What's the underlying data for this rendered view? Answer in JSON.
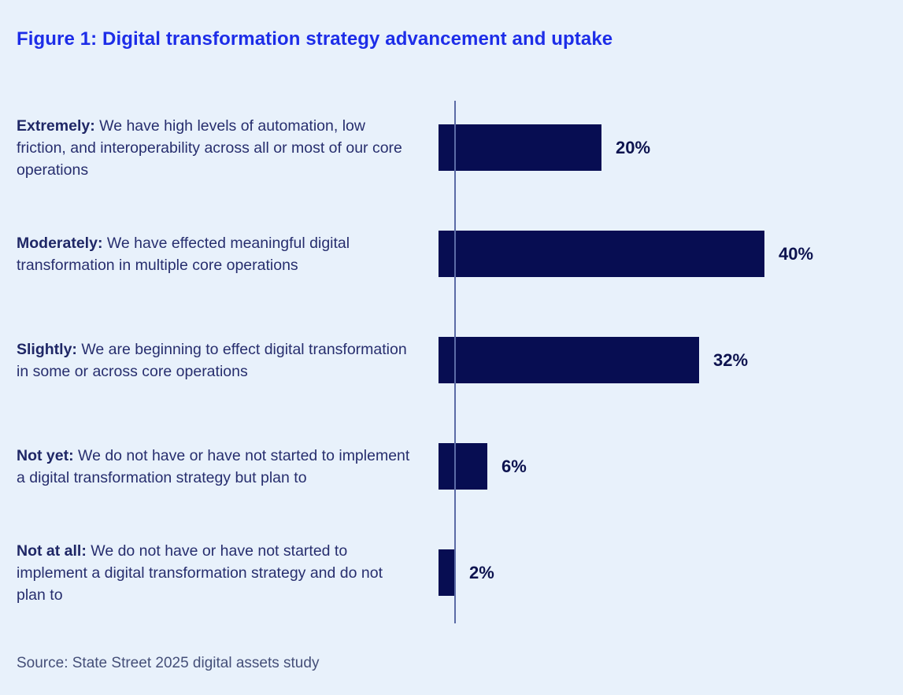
{
  "title": "Figure 1: Digital transformation strategy advancement and uptake",
  "source": "Source: State Street 2025 digital assets study",
  "rows": [
    {
      "lead": "Extremely:",
      "desc": " We have high levels of automation, low friction, and interoperability across all or most of our core operations",
      "value": 20,
      "value_label": "20%"
    },
    {
      "lead": "Moderately:",
      "desc": " We have effected meaningful digital transformation in multiple core operations",
      "value": 40,
      "value_label": "40%"
    },
    {
      "lead": "Slightly:",
      "desc": " We are beginning to effect digital transformation in some or across core operations",
      "value": 32,
      "value_label": "32%"
    },
    {
      "lead": "Not yet:",
      "desc": " We do not have or have not started to implement a digital transformation strategy but plan to",
      "value": 6,
      "value_label": "6%"
    },
    {
      "lead": "Not at all:",
      "desc": " We do not have or have not started to implement a digital transformation strategy and do not plan to",
      "value": 2,
      "value_label": "2%"
    }
  ],
  "chart_data": {
    "type": "bar",
    "orientation": "horizontal",
    "title": "Figure 1: Digital transformation strategy advancement and uptake",
    "categories": [
      "Extremely",
      "Moderately",
      "Slightly",
      "Not yet",
      "Not at all"
    ],
    "values": [
      20,
      40,
      32,
      6,
      2
    ],
    "value_labels": [
      "20%",
      "40%",
      "32%",
      "6%",
      "2%"
    ],
    "xlabel": "",
    "ylabel": "",
    "xlim": [
      0,
      45
    ],
    "grid": "off",
    "legend": "none",
    "data_labels_position": "outside-end",
    "source": "Source: State Street 2025 digital assets study"
  },
  "colors": {
    "background": "#e8f1fb",
    "title_blue": "#1d2de8",
    "bar_navy": "#070d52",
    "label_navy": "#272e6e",
    "value_navy": "#0d134f",
    "axis_slate": "#5b6ba6",
    "source_gray_blue": "#454f78"
  }
}
